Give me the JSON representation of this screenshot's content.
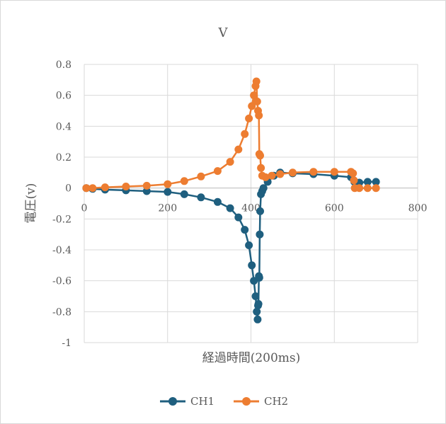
{
  "chart_data": {
    "type": "scatter",
    "title": "V",
    "xlabel": "経過時間(200ms)",
    "ylabel": "電圧(v)",
    "xlim": [
      0,
      800
    ],
    "ylim": [
      -1,
      0.8
    ],
    "x_ticks": [
      0,
      200,
      400,
      600,
      800
    ],
    "y_ticks": [
      -1,
      -0.8,
      -0.6,
      -0.4,
      -0.2,
      0,
      0.2,
      0.4,
      0.6,
      0.8
    ],
    "x_tick_labels": [
      "0",
      "200",
      "400",
      "600",
      "800"
    ],
    "y_tick_labels": [
      "-1",
      "-0.8",
      "-0.6",
      "-0.4",
      "-0.2",
      "0",
      "0.2",
      "0.4",
      "0.6",
      "0.8"
    ],
    "grid": true,
    "legend_position": "bottom",
    "series": [
      {
        "name": "CH1",
        "color": "#1f5f7f",
        "points": [
          [
            5,
            0.0
          ],
          [
            20,
            -0.005
          ],
          [
            50,
            -0.01
          ],
          [
            100,
            -0.015
          ],
          [
            150,
            -0.02
          ],
          [
            200,
            -0.025
          ],
          [
            240,
            -0.04
          ],
          [
            280,
            -0.06
          ],
          [
            320,
            -0.09
          ],
          [
            350,
            -0.13
          ],
          [
            370,
            -0.19
          ],
          [
            385,
            -0.27
          ],
          [
            395,
            -0.37
          ],
          [
            402,
            -0.5
          ],
          [
            407,
            -0.6
          ],
          [
            411,
            -0.7
          ],
          [
            414,
            -0.8
          ],
          [
            416,
            -0.85
          ],
          [
            417,
            -0.76
          ],
          [
            418,
            -0.75
          ],
          [
            419,
            -0.57
          ],
          [
            420,
            -0.58
          ],
          [
            421,
            -0.3
          ],
          [
            422,
            -0.15
          ],
          [
            424,
            -0.04
          ],
          [
            427,
            -0.02
          ],
          [
            430,
            0.0
          ],
          [
            440,
            0.04
          ],
          [
            455,
            0.08
          ],
          [
            470,
            0.1
          ],
          [
            500,
            0.095
          ],
          [
            550,
            0.09
          ],
          [
            600,
            0.08
          ],
          [
            640,
            0.07
          ],
          [
            648,
            0.04
          ],
          [
            652,
            0.03
          ],
          [
            660,
            0.035
          ],
          [
            680,
            0.04
          ],
          [
            700,
            0.04
          ]
        ]
      },
      {
        "name": "CH2",
        "color": "#ed7d31",
        "points": [
          [
            5,
            0.0
          ],
          [
            20,
            0.0
          ],
          [
            50,
            0.005
          ],
          [
            100,
            0.01
          ],
          [
            150,
            0.015
          ],
          [
            200,
            0.025
          ],
          [
            240,
            0.045
          ],
          [
            280,
            0.075
          ],
          [
            320,
            0.11
          ],
          [
            350,
            0.17
          ],
          [
            370,
            0.25
          ],
          [
            385,
            0.35
          ],
          [
            395,
            0.45
          ],
          [
            402,
            0.53
          ],
          [
            407,
            0.6
          ],
          [
            411,
            0.66
          ],
          [
            413,
            0.69
          ],
          [
            415,
            0.56
          ],
          [
            417,
            0.5
          ],
          [
            419,
            0.47
          ],
          [
            420,
            0.22
          ],
          [
            422,
            0.21
          ],
          [
            424,
            0.13
          ],
          [
            427,
            0.08
          ],
          [
            435,
            0.07
          ],
          [
            450,
            0.08
          ],
          [
            470,
            0.09
          ],
          [
            500,
            0.1
          ],
          [
            550,
            0.105
          ],
          [
            600,
            0.105
          ],
          [
            640,
            0.105
          ],
          [
            645,
            0.095
          ],
          [
            647,
            0.05
          ],
          [
            649,
            0.0
          ],
          [
            660,
            0.0
          ],
          [
            680,
            0.0
          ],
          [
            700,
            0.0
          ]
        ]
      }
    ]
  }
}
